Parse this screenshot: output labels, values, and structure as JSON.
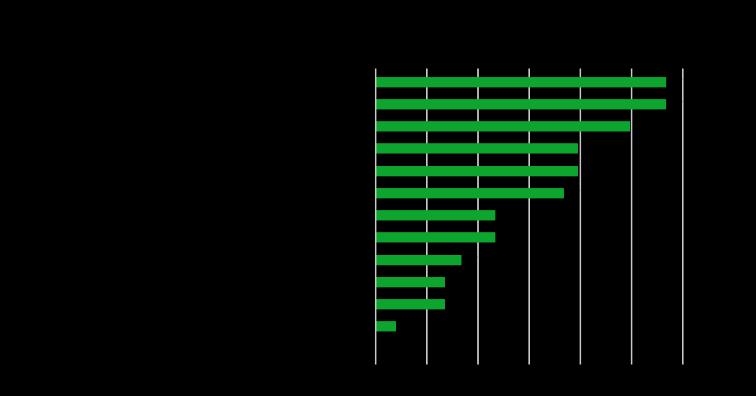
{
  "chart_data": {
    "type": "bar",
    "orientation": "horizontal",
    "title": "",
    "xlabel": "",
    "ylabel": "",
    "categories": [
      "",
      "",
      "",
      "",
      "",
      "",
      "",
      "",
      "",
      "",
      "",
      ""
    ],
    "values": [
      5.66,
      5.66,
      4.95,
      3.94,
      3.94,
      3.66,
      2.32,
      2.32,
      1.66,
      1.34,
      1.34,
      0.38
    ],
    "xlim": [
      0,
      6
    ],
    "x_ticks": [
      0,
      1,
      2,
      3,
      4,
      5,
      6
    ],
    "grid": "vertical gridlines on, 7 evenly spaced lines including one at the y-axis",
    "legend": "none",
    "value_unit": "gridline intervals (numeric axis tick labels are not legible in the screenshot)",
    "text_visibility_note": "All chart text (title, axis labels, category labels, tick labels, bar value labels) is rendered in black over the black background and is not legible; only the green bars, light-gray gridlines and tiny black label fragments crossing gridlines are visible.",
    "colors": {
      "bar": "#0ca62e",
      "gridline": "#c9c9c9",
      "background": "#000000",
      "text": "#000000"
    }
  }
}
